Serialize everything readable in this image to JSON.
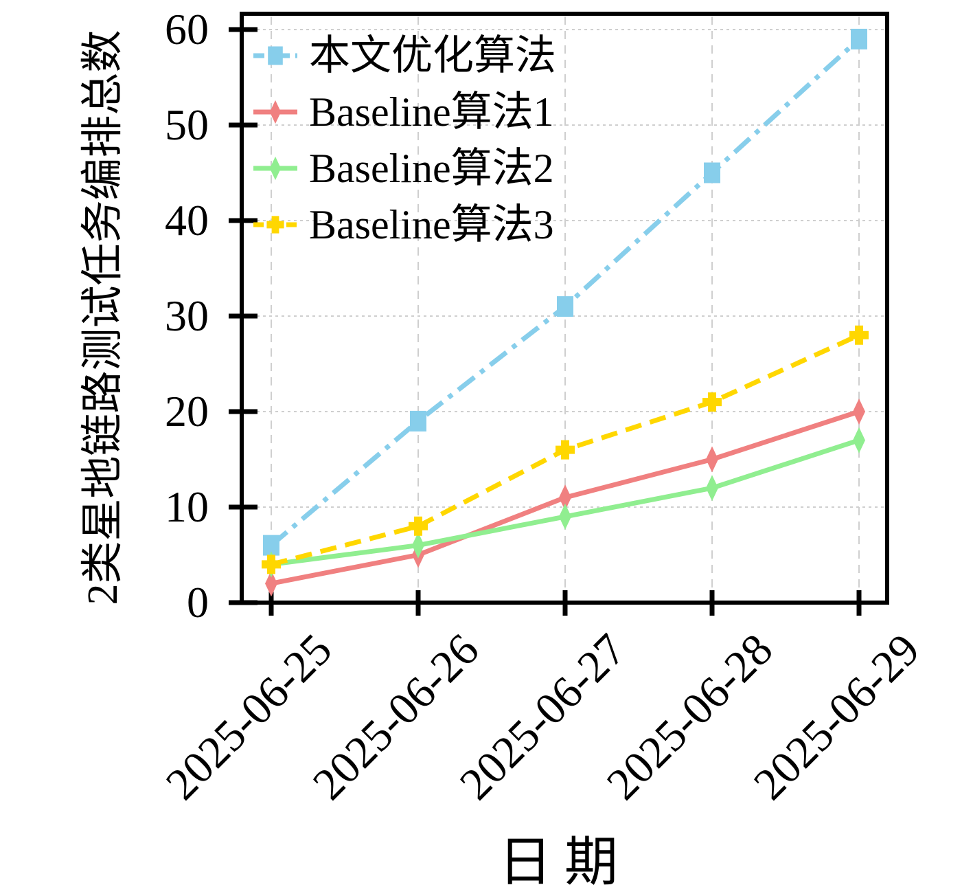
{
  "chart_data": {
    "type": "line",
    "title": "",
    "xlabel": "日期",
    "ylabel": "2类星地链路测试任务编排总数",
    "categories": [
      "2025-06-25",
      "2025-06-26",
      "2025-06-27",
      "2025-06-28",
      "2025-06-29"
    ],
    "yticks": [
      0,
      10,
      20,
      30,
      40,
      50,
      60
    ],
    "ylim": [
      0,
      60
    ],
    "grid": true,
    "legend_position": "upper-left",
    "series": [
      {
        "name": "本文优化算法",
        "color": "#87CEEB",
        "line_style": "dash-dot",
        "marker": "square",
        "values": [
          6,
          19,
          31,
          45,
          59
        ]
      },
      {
        "name": "Baseline算法1",
        "color": "#F08080",
        "line_style": "solid",
        "marker": "thin-diamond",
        "values": [
          2,
          5,
          11,
          15,
          20
        ]
      },
      {
        "name": "Baseline算法2",
        "color": "#90EE90",
        "line_style": "solid",
        "marker": "thin-diamond",
        "values": [
          4,
          6,
          9,
          12,
          17
        ]
      },
      {
        "name": "Baseline算法3",
        "color": "#FFD700",
        "line_style": "dashed",
        "marker": "plus",
        "values": [
          4,
          8,
          16,
          21,
          28
        ]
      }
    ]
  }
}
